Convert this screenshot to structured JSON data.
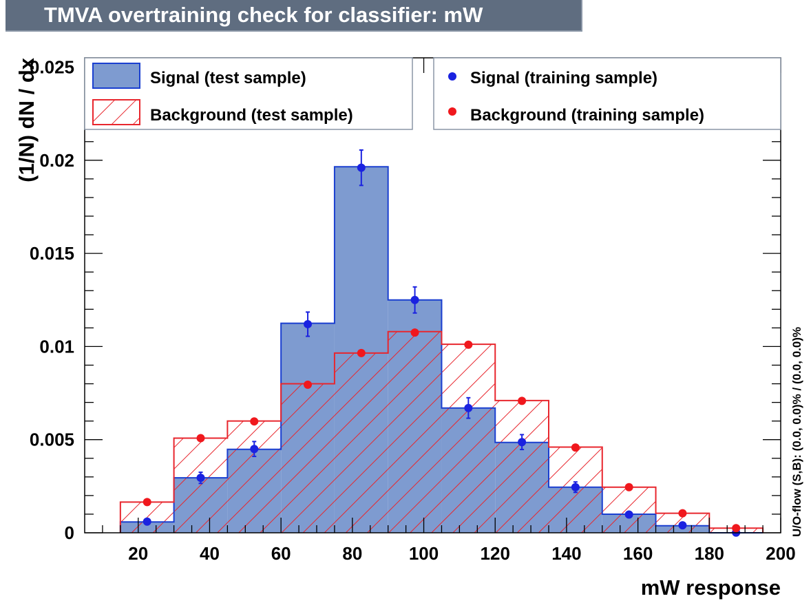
{
  "title": "TMVA overtraining check for classifier: mW",
  "chart_data": {
    "type": "bar",
    "subtype": "histogram",
    "title": "TMVA overtraining check for classifier: mW",
    "xlabel": "mW response",
    "ylabel": "(1/N) dN / dx",
    "side_note": "U/O-flow (S,B): (0.0, 0.0)% / (0.0, 0.0)%",
    "xlim": [
      5,
      200
    ],
    "ylim": [
      0,
      0.0255
    ],
    "x_ticks": [
      20,
      40,
      60,
      80,
      100,
      120,
      140,
      160,
      180,
      200
    ],
    "y_ticks": [
      0,
      0.005,
      0.01,
      0.015,
      0.02,
      0.025
    ],
    "y_tick_labels": [
      "0",
      "0.005",
      "0.01",
      "0.015",
      "0.02",
      "0.025"
    ],
    "bin_edges": [
      15,
      30,
      45,
      60,
      75,
      90,
      105,
      120,
      135,
      150,
      165,
      180,
      195
    ],
    "series": [
      {
        "name": "Signal (test sample)",
        "style": "filled-histogram",
        "color": "#7e9bd0",
        "edge_color": "#1a3fd0",
        "values": [
          0.00058,
          0.00295,
          0.00448,
          0.01125,
          0.01965,
          0.0125,
          0.0067,
          0.00485,
          0.00245,
          0.001,
          0.00038,
          0.0
        ]
      },
      {
        "name": "Background (test sample)",
        "style": "hatched-histogram",
        "color": "#e8262d",
        "values": [
          0.00165,
          0.00508,
          0.006,
          0.008,
          0.00965,
          0.0108,
          0.01012,
          0.0071,
          0.0046,
          0.00245,
          0.00105,
          0.00025
        ]
      },
      {
        "name": "Signal (training sample)",
        "style": "markers",
        "color": "#1a22e0",
        "values": [
          0.0006,
          0.00295,
          0.0045,
          0.0112,
          0.0196,
          0.0125,
          0.0067,
          0.00487,
          0.00245,
          0.00098,
          0.0004,
          1e-05
        ],
        "errors": [
          8e-05,
          0.0003,
          0.0004,
          0.00065,
          0.00095,
          0.0007,
          0.00055,
          0.0004,
          0.00028,
          0.00012,
          7e-05,
          2e-05
        ]
      },
      {
        "name": "Background (training sample)",
        "style": "markers",
        "color": "#f0181d",
        "values": [
          0.00165,
          0.00508,
          0.00598,
          0.00795,
          0.00965,
          0.01075,
          0.0101,
          0.00708,
          0.00458,
          0.00245,
          0.00105,
          0.00025
        ]
      }
    ],
    "legend": {
      "position": "top",
      "left_entries": [
        "Signal (test sample)",
        "Background (test sample)"
      ],
      "right_entries": [
        "Signal (training sample)",
        "Background (training sample)"
      ]
    }
  }
}
